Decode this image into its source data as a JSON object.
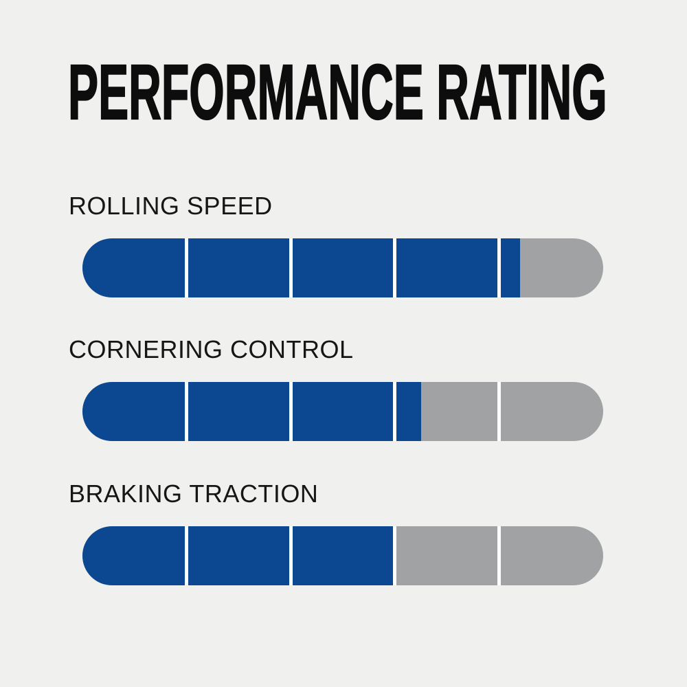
{
  "page_title": "PERFORMANCE RATING",
  "colors": {
    "background": "#f0f0ee",
    "bar_fill_blue": "#0c4892",
    "bar_track_gray": "#a0a2a3",
    "divider_white": "#fcfdfd",
    "text_black": "#0d0d0d"
  },
  "chart_data": {
    "type": "bar",
    "title": "PERFORMANCE RATING",
    "orientation": "horizontal",
    "max_rating": 5,
    "segments_per_bar": 5,
    "categories": [
      "ROLLING SPEED",
      "CORNERING CONTROL",
      "BRAKING TRACTION"
    ],
    "values": [
      4.2,
      3.25,
      3.0
    ],
    "fill_percent": [
      84,
      65,
      60
    ],
    "xlabel": "",
    "ylabel": "",
    "grid": false,
    "legend_position": "none"
  },
  "metrics": [
    {
      "label": "ROLLING SPEED",
      "value": 4.2,
      "fill_percent": 84
    },
    {
      "label": "CORNERING CONTROL",
      "value": 3.25,
      "fill_percent": 65
    },
    {
      "label": "BRAKING TRACTION",
      "value": 3.0,
      "fill_percent": 60
    }
  ]
}
